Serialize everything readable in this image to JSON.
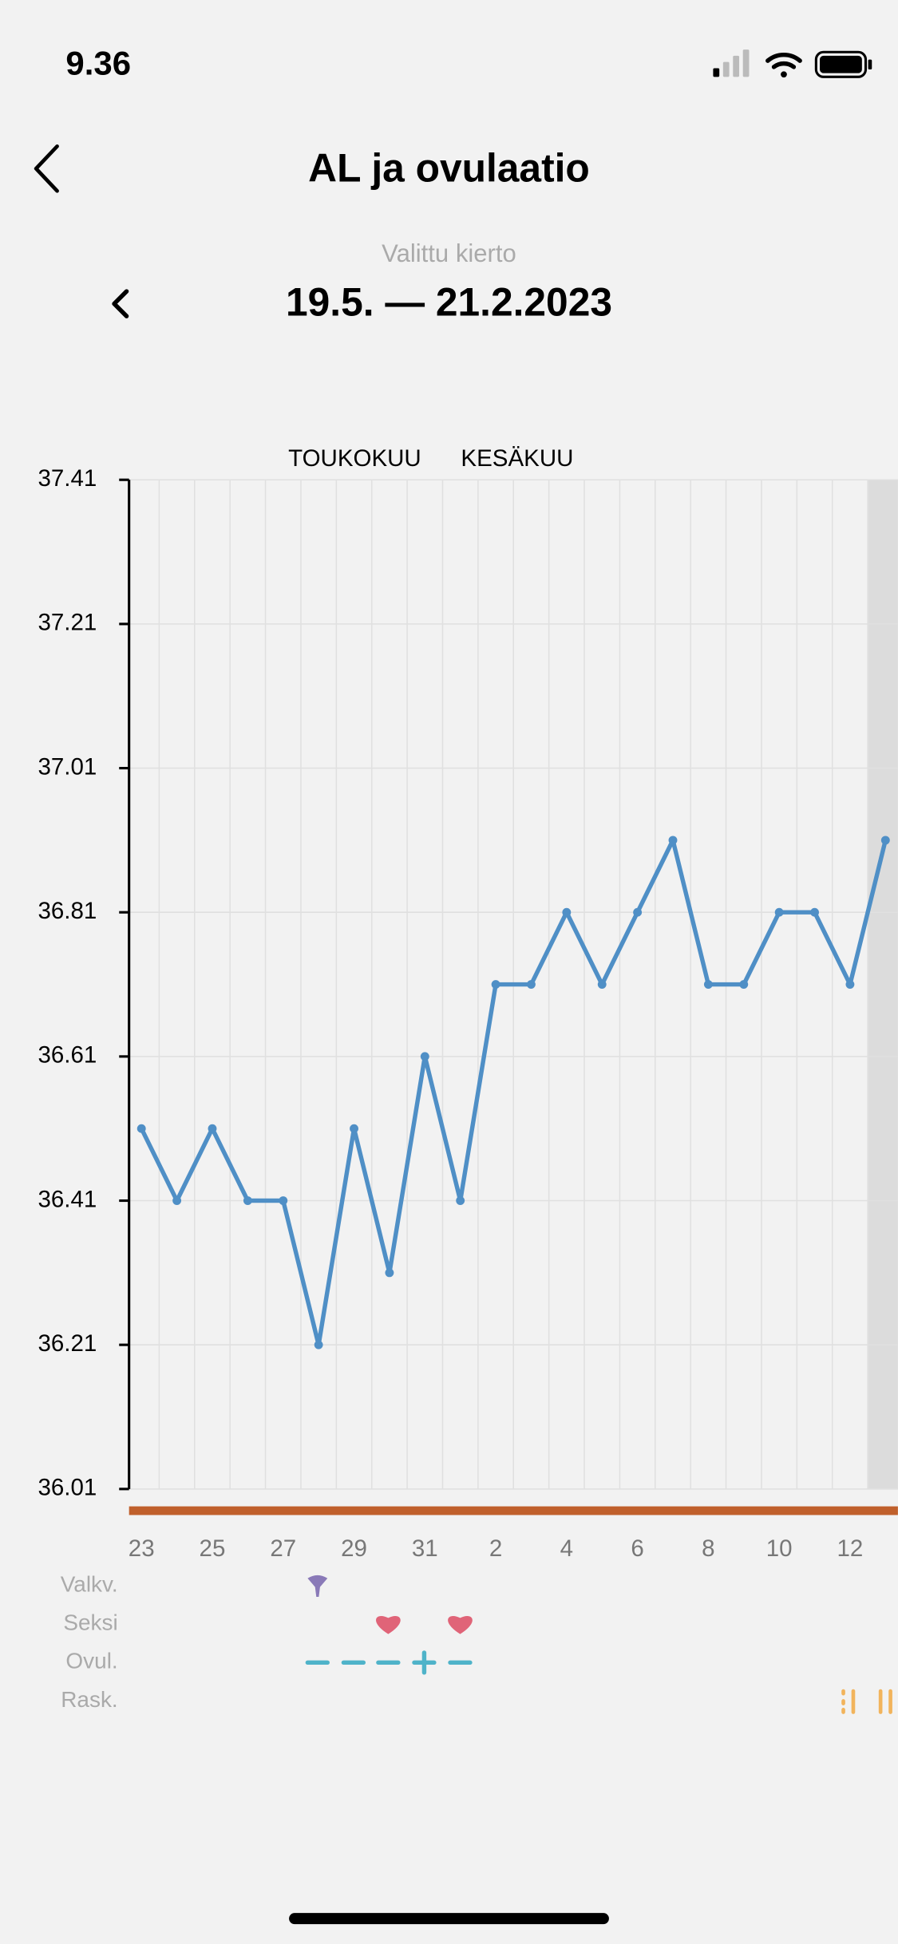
{
  "status_bar": {
    "time": "9.36"
  },
  "header": {
    "title": "AL ja ovulaatio"
  },
  "cycle": {
    "label": "Valittu kierto",
    "range": "19.5. — 21.2.2023"
  },
  "chart_data": {
    "type": "line",
    "month_labels": [
      "TOUKOKUU",
      "KESÄKUU"
    ],
    "categories": [
      "23",
      null,
      "25",
      null,
      "27",
      null,
      "29",
      null,
      "31",
      null,
      "2",
      null,
      "4",
      null,
      "6",
      null,
      "8",
      null,
      "10",
      null,
      "12",
      null
    ],
    "values": [
      36.51,
      36.41,
      36.51,
      36.41,
      36.41,
      36.21,
      36.51,
      36.31,
      36.61,
      36.41,
      36.71,
      36.71,
      36.81,
      36.71,
      36.81,
      36.91,
      36.71,
      36.71,
      36.81,
      36.81,
      36.71,
      36.91
    ],
    "color": "#4f8fc6",
    "ylim": [
      36.01,
      37.41
    ],
    "yticks": [
      36.01,
      36.21,
      36.41,
      36.61,
      36.81,
      37.01,
      37.21,
      37.41
    ],
    "grid": true
  },
  "rows": {
    "labels": [
      "Valkv.",
      "Seksi",
      "Ovul.",
      "Rask."
    ]
  }
}
